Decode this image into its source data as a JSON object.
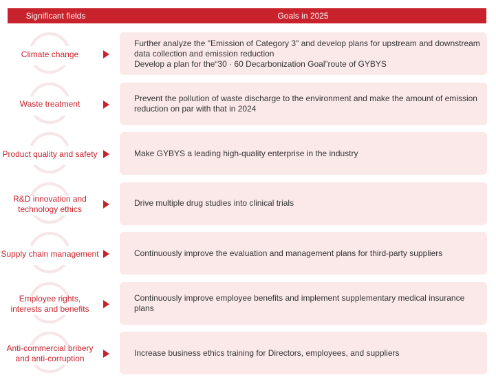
{
  "header": {
    "left": "Significant fields",
    "right": "Goals in 2025"
  },
  "rows": [
    {
      "field_lines": [
        "Climate change"
      ],
      "goal_lines": [
        "Further analyze the \"Emission of Category 3\" and develop plans for upstream and downstream",
        "data collection and emission reduction",
        "Develop a plan for the“30 · 60 Decarbonization Goal”route of GYBYS"
      ]
    },
    {
      "field_lines": [
        "Waste treatment"
      ],
      "goal_lines": [
        "Prevent the pollution of waste discharge to the environment and make the amount of emission",
        "reduction on par with that in 2024"
      ]
    },
    {
      "field_lines": [
        "Product quality and safety"
      ],
      "goal_lines": [
        "Make GYBYS a leading high-quality enterprise in the industry"
      ]
    },
    {
      "field_lines": [
        "R&D innovation and",
        "technology ethics"
      ],
      "goal_lines": [
        "Drive multiple drug studies into clinical trials"
      ]
    },
    {
      "field_lines": [
        "Supply chain management"
      ],
      "goal_lines": [
        "Continuously improve the evaluation and management plans for third-party suppliers"
      ]
    },
    {
      "field_lines": [
        "Employee rights,",
        "interests and benefits"
      ],
      "goal_lines": [
        "Continuously improve employee benefits and implement supplementary medical insurance plans"
      ]
    },
    {
      "field_lines": [
        "Anti-commercial bribery",
        "and anti-corruption"
      ],
      "goal_lines": [
        "Increase business ethics training for Directors, employees, and suppliers"
      ]
    }
  ],
  "colors": {
    "accent": "#c8232c",
    "goal_background": "#fbe9ea",
    "arc": "#f7e5e7",
    "body_text": "#333333"
  },
  "icons": {
    "row_marker": "triangle-right-icon"
  }
}
